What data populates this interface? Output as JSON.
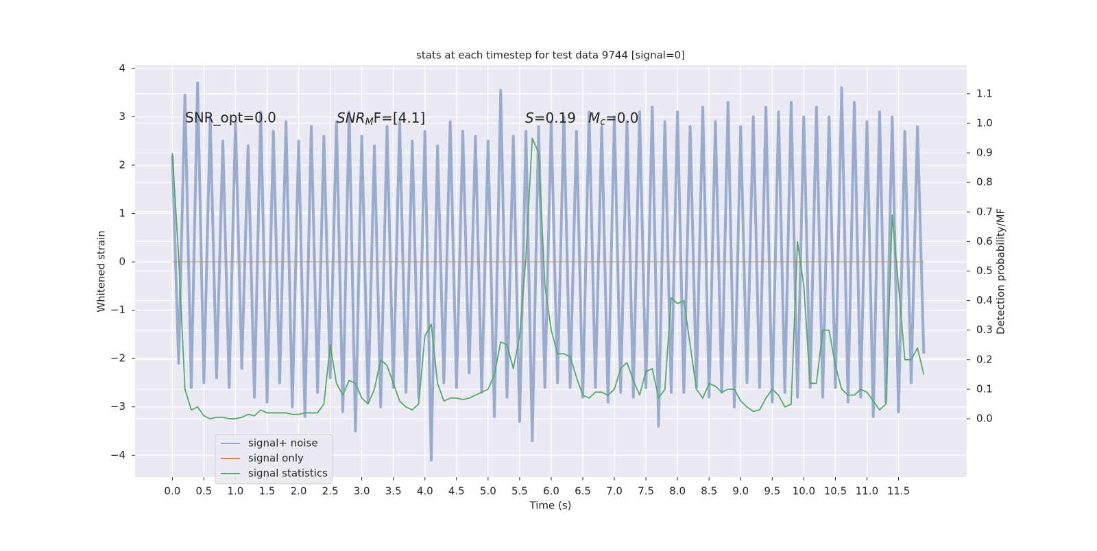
{
  "chart_data": {
    "type": "line",
    "title": "stats at each timestep for test data 9744 [signal=0]",
    "xlabel": "Time (s)",
    "ylabel": "Whitened strain",
    "y2label": "Detection probability/MF",
    "annotations": [
      {
        "text": "SNR_opt=0.0"
      },
      {
        "symbol": "SNR",
        "subscript": "M",
        "text": "F=[4.1]"
      },
      {
        "symbol": "S",
        "text": "=0.19"
      },
      {
        "symbol": "M",
        "subscript": "c",
        "text": "=0.0"
      }
    ],
    "x": [
      0,
      0.1,
      0.2,
      0.3,
      0.4,
      0.5,
      0.6,
      0.7,
      0.8,
      0.9,
      1,
      1.1,
      1.2,
      1.3,
      1.4,
      1.5,
      1.6,
      1.7,
      1.8,
      1.9,
      2,
      2.1,
      2.2,
      2.3,
      2.4,
      2.5,
      2.6,
      2.7,
      2.8,
      2.9,
      3,
      3.1,
      3.2,
      3.3,
      3.4,
      3.5,
      3.6,
      3.7,
      3.8,
      3.9,
      4,
      4.1,
      4.2,
      4.3,
      4.4,
      4.5,
      4.6,
      4.7,
      4.8,
      4.9,
      5,
      5.1,
      5.2,
      5.3,
      5.4,
      5.5,
      5.6,
      5.7,
      5.8,
      5.9,
      6,
      6.1,
      6.2,
      6.3,
      6.4,
      6.5,
      6.6,
      6.7,
      6.8,
      6.9,
      7,
      7.1,
      7.2,
      7.3,
      7.4,
      7.5,
      7.6,
      7.7,
      7.8,
      7.9,
      8,
      8.1,
      8.2,
      8.3,
      8.4,
      8.5,
      8.6,
      8.7,
      8.8,
      8.9,
      9,
      9.1,
      9.2,
      9.3,
      9.4,
      9.5,
      9.6,
      9.7,
      9.8,
      9.9,
      10,
      10.1,
      10.2,
      10.3,
      10.4,
      10.5,
      10.6,
      10.7,
      10.8,
      10.9,
      11,
      11.1,
      11.2,
      11.3,
      11.4,
      11.5,
      11.6,
      11.7,
      11.8,
      11.9
    ],
    "series": [
      {
        "name": "signal+ noise",
        "color": "#9aabd0",
        "values": [
          2.2,
          -2.1,
          3.45,
          -2.6,
          3.7,
          -2.5,
          3.0,
          -2.4,
          2.5,
          -2.6,
          2.9,
          -2.2,
          2.4,
          -2.8,
          3.1,
          -2.9,
          2.7,
          -2.5,
          2.9,
          -3.0,
          2.5,
          -3.2,
          2.8,
          -2.7,
          2.6,
          -2.4,
          2.9,
          -3.1,
          3.1,
          -3.5,
          2.6,
          -2.9,
          2.4,
          -3.0,
          2.8,
          -2.6,
          2.9,
          -2.7,
          2.5,
          -2.8,
          2.7,
          -4.1,
          2.4,
          -2.5,
          2.9,
          -2.6,
          2.7,
          -2.3,
          2.6,
          -2.7,
          2.5,
          -3.2,
          3.55,
          -2.8,
          2.6,
          -3.3,
          2.7,
          -3.7,
          2.8,
          -2.6,
          2.9,
          -2.5,
          3.0,
          -2.6,
          2.7,
          -2.8,
          3.1,
          -2.6,
          2.8,
          -2.9,
          3.0,
          -2.7,
          2.9,
          -2.8,
          3.1,
          -2.6,
          3.2,
          -3.4,
          2.9,
          -2.7,
          3.1,
          -2.7,
          2.8,
          -2.6,
          3.2,
          -2.8,
          2.9,
          -2.7,
          3.3,
          -3.0,
          2.8,
          -2.5,
          3.0,
          -2.6,
          3.2,
          -2.9,
          3.1,
          -2.7,
          3.3,
          -2.8,
          3.0,
          -2.6,
          3.2,
          -2.8,
          3.0,
          -2.6,
          3.6,
          -2.9,
          3.3,
          -2.8,
          2.9,
          -3.2,
          3.1,
          -2.9,
          3.0,
          -3.1,
          2.7,
          -2.5,
          2.8,
          -1.9
        ]
      },
      {
        "name": "signal only",
        "color": "#dd8452",
        "values": [
          0,
          0,
          0,
          0,
          0,
          0,
          0,
          0,
          0,
          0,
          0,
          0,
          0,
          0,
          0,
          0,
          0,
          0,
          0,
          0,
          0,
          0,
          0,
          0,
          0,
          0,
          0,
          0,
          0,
          0,
          0,
          0,
          0,
          0,
          0,
          0,
          0,
          0,
          0,
          0,
          0,
          0,
          0,
          0,
          0,
          0,
          0,
          0,
          0,
          0,
          0,
          0,
          0,
          0,
          0,
          0,
          0,
          0,
          0,
          0,
          0,
          0,
          0,
          0,
          0,
          0,
          0,
          0,
          0,
          0,
          0,
          0,
          0,
          0,
          0,
          0,
          0,
          0,
          0,
          0,
          0,
          0,
          0,
          0,
          0,
          0,
          0,
          0,
          0,
          0,
          0,
          0,
          0,
          0,
          0,
          0,
          0,
          0,
          0,
          0,
          0,
          0,
          0,
          0,
          0,
          0,
          0,
          0,
          0,
          0,
          0,
          0,
          0,
          0,
          0,
          0,
          0,
          0,
          0,
          0
        ]
      },
      {
        "name": "signal statistics",
        "color": "#55a868",
        "axis": "y2",
        "values": [
          0.9,
          0.55,
          0.1,
          0.03,
          0.04,
          0.01,
          0,
          0.005,
          0.005,
          0,
          0,
          0.005,
          0.015,
          0.01,
          0.03,
          0.02,
          0.02,
          0.02,
          0.02,
          0.015,
          0.015,
          0.02,
          0.02,
          0.02,
          0.05,
          0.25,
          0.12,
          0.08,
          0.13,
          0.12,
          0.07,
          0.05,
          0.1,
          0.2,
          0.18,
          0.12,
          0.06,
          0.04,
          0.03,
          0.05,
          0.28,
          0.32,
          0.12,
          0.06,
          0.07,
          0.07,
          0.065,
          0.07,
          0.08,
          0.09,
          0.1,
          0.15,
          0.26,
          0.25,
          0.17,
          0.28,
          0.55,
          0.95,
          0.9,
          0.45,
          0.3,
          0.22,
          0.22,
          0.21,
          0.14,
          0.08,
          0.07,
          0.09,
          0.09,
          0.08,
          0.1,
          0.17,
          0.19,
          0.13,
          0.08,
          0.16,
          0.17,
          0.07,
          0.1,
          0.41,
          0.39,
          0.4,
          0.25,
          0.1,
          0.07,
          0.12,
          0.11,
          0.09,
          0.1,
          0.1,
          0.06,
          0.04,
          0.025,
          0.03,
          0.07,
          0.1,
          0.08,
          0.04,
          0.05,
          0.6,
          0.45,
          0.12,
          0.12,
          0.3,
          0.3,
          0.18,
          0.1,
          0.08,
          0.08,
          0.1,
          0.09,
          0.06,
          0.03,
          0.05,
          0.69,
          0.45,
          0.2,
          0.2,
          0.24,
          0.15
        ]
      }
    ],
    "xlim": [
      -0.59,
      12.58
    ],
    "xticks": [
      {
        "value": 0,
        "label": "0.0"
      },
      0.5,
      {
        "value": 1,
        "label": "1.0"
      },
      1.5,
      {
        "value": 2,
        "label": "2.0"
      },
      2.5,
      {
        "value": 3,
        "label": "3.0"
      },
      3.5,
      {
        "value": 4,
        "label": "4.0"
      },
      4.5,
      {
        "value": 5,
        "label": "5.0"
      },
      5.5,
      {
        "value": 6,
        "label": "6.0"
      },
      6.5,
      {
        "value": 7,
        "label": "7.0"
      },
      7.5,
      {
        "value": 8,
        "label": "8.0"
      },
      8.5,
      {
        "value": 9,
        "label": "9.0"
      },
      9.5,
      {
        "value": 10,
        "label": "10.0"
      },
      10.5,
      {
        "value": 11,
        "label": "11.0"
      },
      11.5
    ],
    "ylim": [
      -4.45,
      4.07
    ],
    "yticks": [
      {
        "value": -4,
        "label": "−4"
      },
      {
        "value": -3,
        "label": "−3"
      },
      {
        "value": -2,
        "label": "−2"
      },
      {
        "value": -1,
        "label": "−1"
      },
      0,
      1,
      2,
      3,
      4
    ],
    "y2lim": [
      -0.197,
      1.197
    ],
    "y2ticks": [
      {
        "value": 0,
        "label": "0.0"
      },
      0.1,
      0.2,
      0.3,
      0.4,
      0.5,
      0.6,
      0.7,
      0.8,
      0.9,
      {
        "value": 1,
        "label": "1.0"
      },
      1.1
    ],
    "grid": true,
    "legend": "lower left",
    "background": "#eaeaf2"
  }
}
